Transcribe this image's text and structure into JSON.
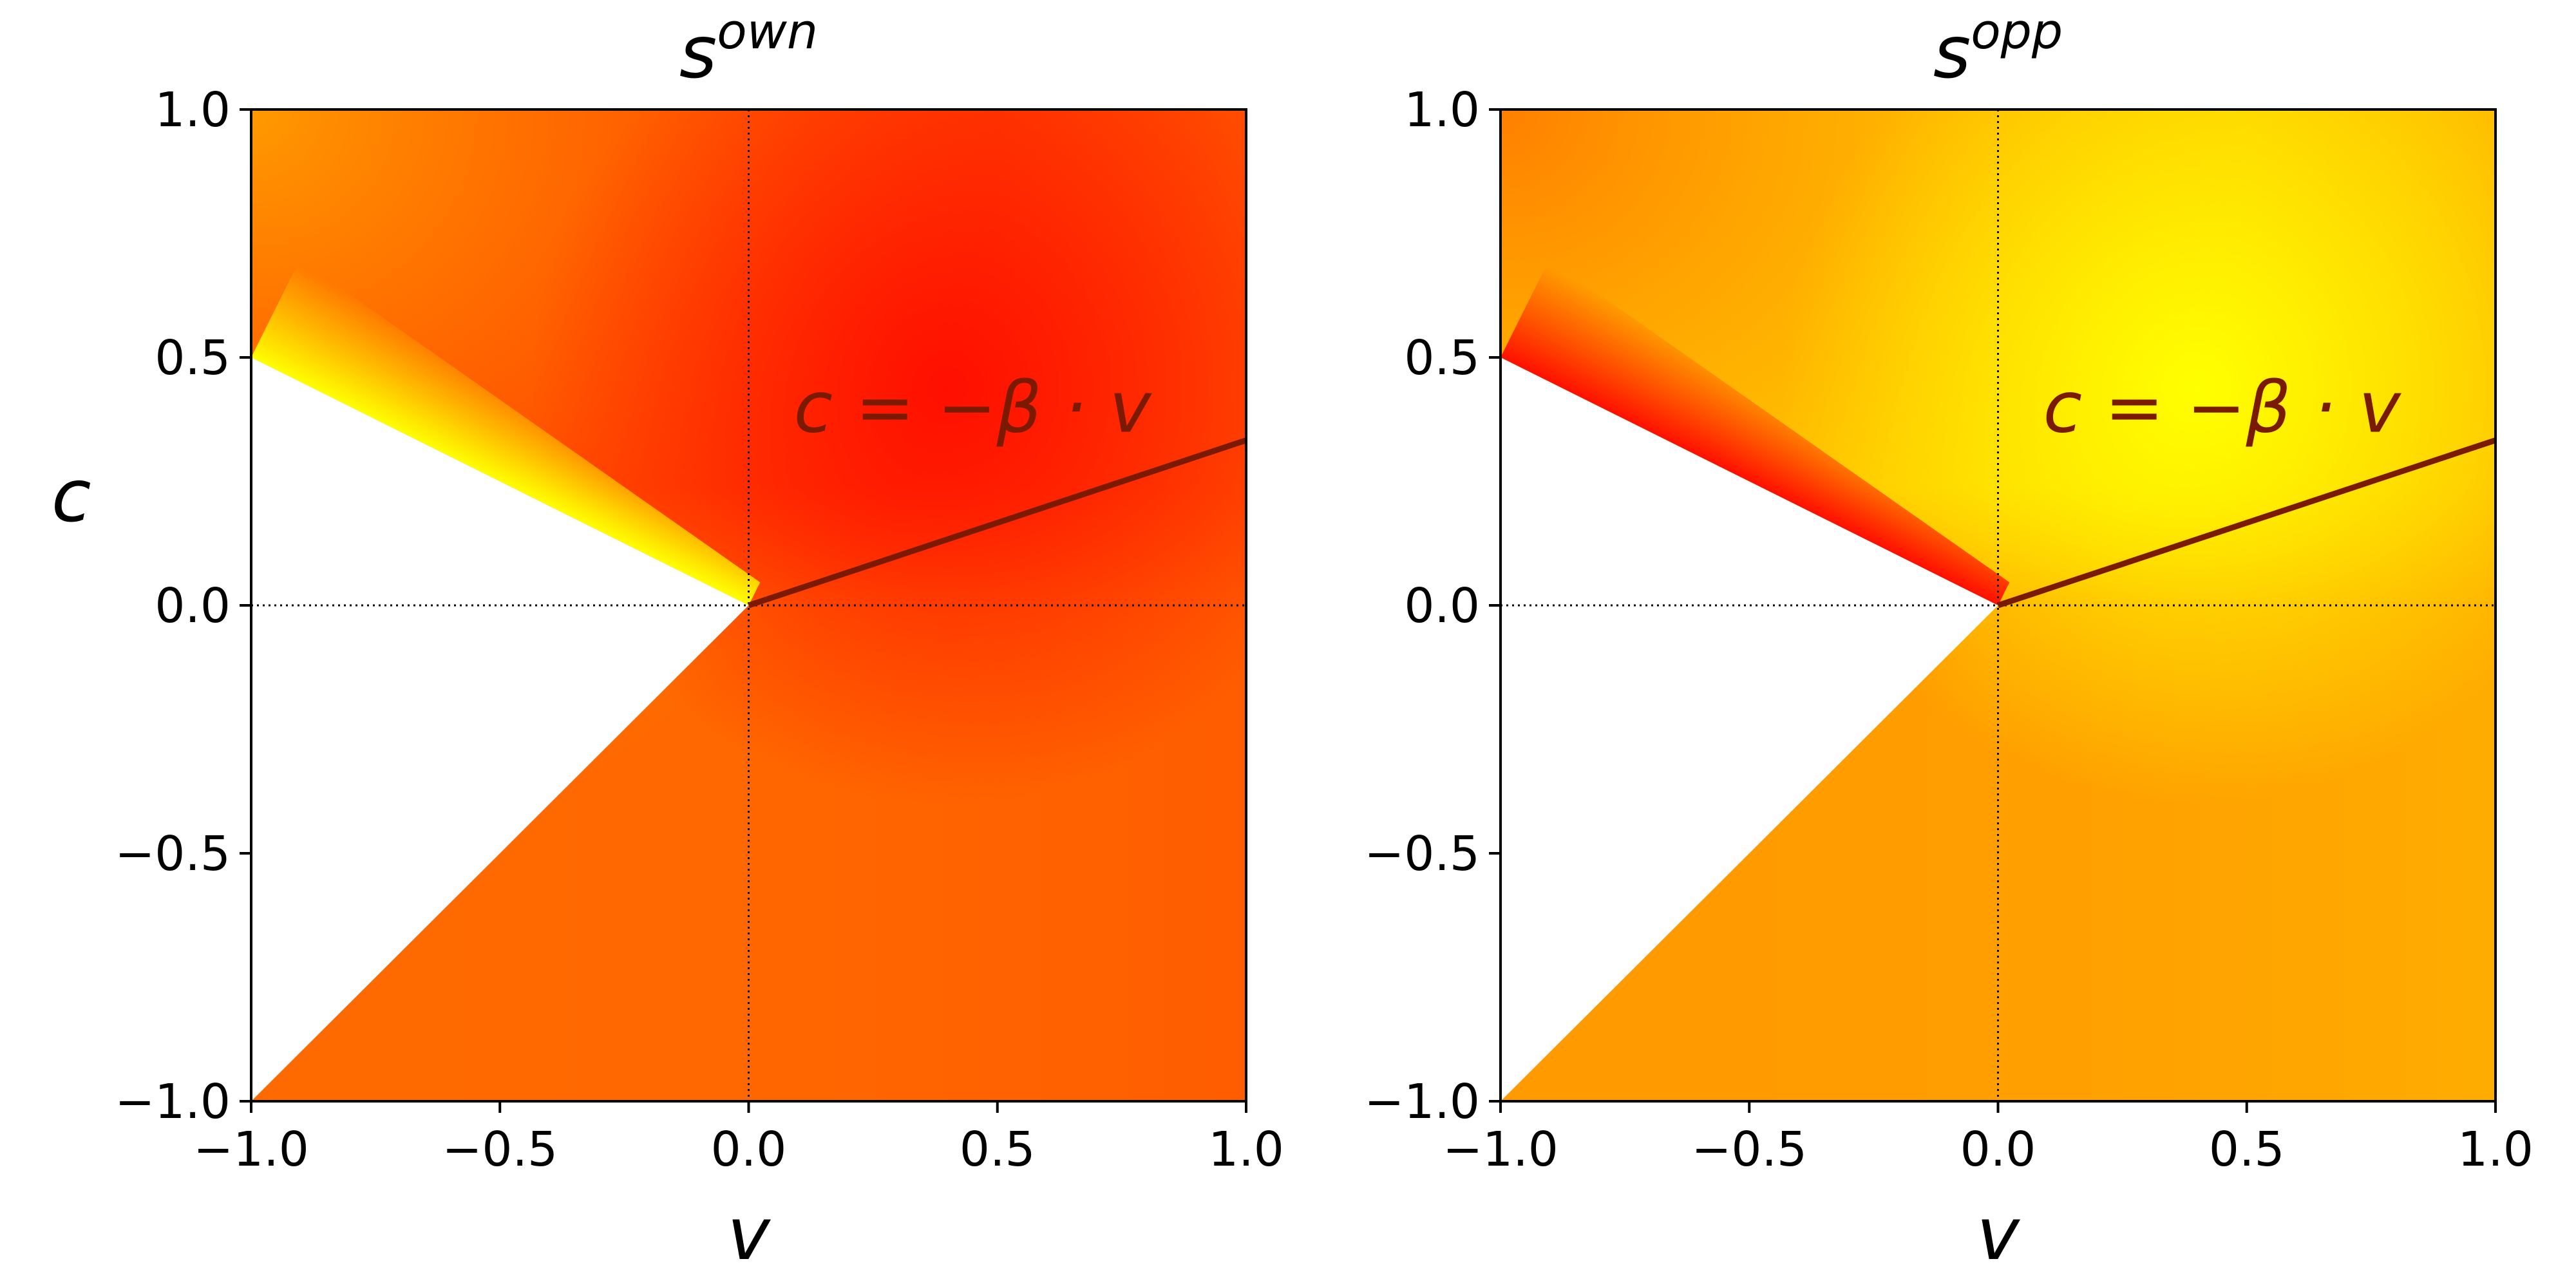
{
  "chart_data": [
    {
      "type": "heatmap",
      "title": {
        "base": "s",
        "superscript": "own"
      },
      "xlabel": "v",
      "ylabel": "c",
      "xlim": [
        -1.0,
        1.0
      ],
      "ylim": [
        -1.0,
        1.0
      ],
      "x_ticks": [
        "−1.0",
        "−0.5",
        "0.0",
        "0.5",
        "1.0"
      ],
      "x_tick_values": [
        -1.0,
        -0.5,
        0.0,
        0.5,
        1.0
      ],
      "y_ticks": [
        "−1.0",
        "−0.5",
        "0.0",
        "0.5",
        "1.0"
      ],
      "y_tick_values": [
        -1.0,
        -0.5,
        0.0,
        0.5,
        1.0
      ],
      "colormap": "autumn",
      "undefined_region": {
        "upper_boundary": {
          "x": [
            -1.0,
            0.0
          ],
          "y": [
            0.5,
            0.0
          ]
        },
        "lower_boundary": {
          "x": [
            -1.0,
            0.0
          ],
          "y": [
            -1.0,
            0.0
          ]
        }
      },
      "reference_line": {
        "x": [
          0.0,
          1.0
        ],
        "y": [
          0.0,
          0.333
        ],
        "color": "#7a1a00"
      },
      "annotation": {
        "text": "c = −β · v",
        "x": 0.45,
        "y": 0.35,
        "color": "#7a1a00"
      },
      "guides": {
        "x_zero": true,
        "y_zero": true,
        "style": "dotted"
      },
      "colors": {
        "top_left": "#ff9a00",
        "near_boundary": "#ffff00",
        "hot": "#ff0f00",
        "bottom": "#ff6a00",
        "bottom_right": "#ff5a00"
      }
    },
    {
      "type": "heatmap",
      "title": {
        "base": "s",
        "superscript": "opp"
      },
      "xlabel": "v",
      "ylabel": "",
      "xlim": [
        -1.0,
        1.0
      ],
      "ylim": [
        -1.0,
        1.0
      ],
      "x_ticks": [
        "−1.0",
        "−0.5",
        "0.0",
        "0.5",
        "1.0"
      ],
      "x_tick_values": [
        -1.0,
        -0.5,
        0.0,
        0.5,
        1.0
      ],
      "y_ticks": [
        "−1.0",
        "−0.5",
        "0.0",
        "0.5",
        "1.0"
      ],
      "y_tick_values": [
        -1.0,
        -0.5,
        0.0,
        0.5,
        1.0
      ],
      "colormap": "autumn",
      "undefined_region": {
        "upper_boundary": {
          "x": [
            -1.0,
            0.0
          ],
          "y": [
            0.5,
            0.0
          ]
        },
        "lower_boundary": {
          "x": [
            -1.0,
            0.0
          ],
          "y": [
            -1.0,
            0.0
          ]
        }
      },
      "reference_line": {
        "x": [
          0.0,
          1.0
        ],
        "y": [
          0.0,
          0.333
        ],
        "color": "#7a1a00"
      },
      "annotation": {
        "text": "c = −β · v",
        "x": 0.45,
        "y": 0.35,
        "color": "#7a1a00"
      },
      "guides": {
        "x_zero": true,
        "y_zero": true,
        "style": "dotted"
      },
      "colors": {
        "top_left": "#ff7f00",
        "near_boundary": "#ff1000",
        "hot": "#ffff00",
        "bottom": "#ff9a00",
        "bottom_right": "#ffb000"
      }
    }
  ]
}
